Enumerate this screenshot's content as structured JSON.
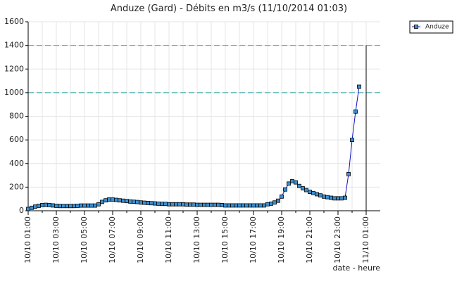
{
  "chart_data": {
    "type": "line",
    "title": "Anduze (Gard) - Débits en m3/s (11/10/2014 01:03)",
    "x_label": "date - heure",
    "categories": [
      "10/10 01:00",
      null,
      null,
      null,
      null,
      null,
      null,
      null,
      "10/10 03:00",
      null,
      null,
      null,
      null,
      null,
      null,
      null,
      "10/10 05:00",
      null,
      null,
      null,
      null,
      null,
      null,
      null,
      "10/10 07:00",
      null,
      null,
      null,
      null,
      null,
      null,
      null,
      "10/10 09:00",
      null,
      null,
      null,
      null,
      null,
      null,
      null,
      "10/10 11:00",
      null,
      null,
      null,
      null,
      null,
      null,
      null,
      "10/10 13:00",
      null,
      null,
      null,
      null,
      null,
      null,
      null,
      "10/10 15:00",
      null,
      null,
      null,
      null,
      null,
      null,
      null,
      "10/10 17:00",
      null,
      null,
      null,
      null,
      null,
      null,
      null,
      "10/10 19:00",
      null,
      null,
      null,
      null,
      null,
      null,
      null,
      "10/10 21:00",
      null,
      null,
      null,
      null,
      null,
      null,
      null,
      "10/10 23:00",
      null,
      null,
      null,
      null,
      null,
      null,
      null,
      "11/10 01:00"
    ],
    "series": [
      {
        "name": "Anduze",
        "color": "#1010c0",
        "marker_color": "#3a8fd0",
        "values": [
          15,
          25,
          35,
          42,
          48,
          50,
          48,
          45,
          42,
          40,
          40,
          40,
          40,
          40,
          42,
          44,
          44,
          44,
          44,
          44,
          55,
          75,
          88,
          95,
          95,
          92,
          88,
          85,
          82,
          78,
          76,
          74,
          70,
          68,
          66,
          64,
          62,
          60,
          58,
          58,
          55,
          55,
          55,
          55,
          55,
          52,
          52,
          52,
          50,
          50,
          50,
          50,
          50,
          50,
          50,
          48,
          45,
          45,
          45,
          45,
          45,
          45,
          45,
          45,
          45,
          45,
          45,
          45,
          55,
          60,
          70,
          85,
          120,
          180,
          230,
          250,
          240,
          210,
          190,
          175,
          160,
          150,
          140,
          130,
          120,
          115,
          110,
          105,
          105,
          105,
          110,
          310,
          600,
          840,
          1050,
          null,
          null
        ]
      }
    ],
    "reference_lines": [
      {
        "value": 1400,
        "color": "#8080e0"
      },
      {
        "value": 1000,
        "color": "#20a0a0"
      }
    ],
    "ylim": [
      0,
      1600
    ],
    "yticks": [
      0,
      200,
      400,
      600,
      800,
      1000,
      1200,
      1400,
      1600
    ],
    "grid": true,
    "legend": "top-right"
  }
}
